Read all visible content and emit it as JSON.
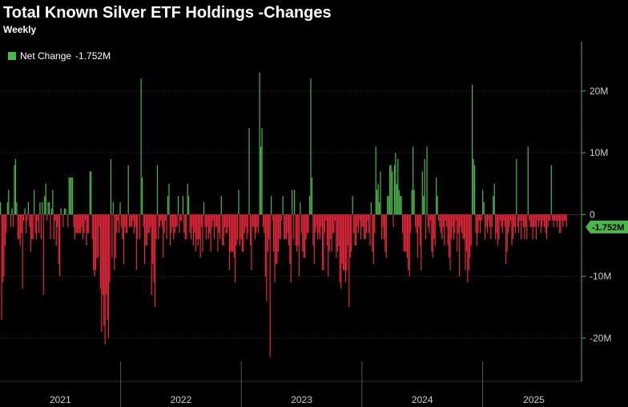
{
  "colors": {
    "positive": "#4cb84c",
    "negative": "#e8283c",
    "grid": "#333333",
    "axis": "#4cb84c",
    "label_bg": "#4cb84c"
  },
  "chart_data": {
    "type": "bar",
    "title": "Total Known Silver ETF Holdings -Changes",
    "subtitle": "Weekly",
    "legend": {
      "label": "Net Change",
      "value": "-1.752M"
    },
    "last_value_label": "-1.752M",
    "ylim": [
      -27,
      28
    ],
    "yticks": [
      {
        "value": 20,
        "label": "20M"
      },
      {
        "value": 10,
        "label": "10M"
      },
      {
        "value": 0,
        "label": "0"
      },
      {
        "value": -10,
        "label": "-10M"
      },
      {
        "value": -20,
        "label": "-20M"
      }
    ],
    "x_start": 2021.0,
    "x_end": 2025.82,
    "years": [
      "2021",
      "2022",
      "2023",
      "2024",
      "2025"
    ],
    "values": [
      2,
      -17,
      -11,
      -10,
      -5,
      -3,
      2,
      4,
      0,
      -2,
      1,
      -2,
      8,
      9,
      2,
      -4,
      -4,
      -5,
      -3,
      -12,
      -1,
      1,
      -3,
      -1,
      2,
      -2,
      -6,
      -4,
      -4,
      4,
      -3,
      -4,
      -1,
      -3,
      2,
      -4,
      2,
      -13,
      3,
      5,
      -1,
      2,
      2,
      -4,
      1,
      4,
      -4,
      -1,
      -5,
      -2,
      -8,
      -10,
      1,
      0,
      -2,
      1,
      1,
      0,
      -2,
      6,
      6,
      6,
      6,
      -2,
      -4,
      -3,
      -3,
      -3,
      -3,
      -3,
      -2,
      -4,
      -3,
      -1,
      -5,
      -3,
      -3,
      7,
      7,
      -4,
      -9,
      -10,
      -9,
      -7,
      -7,
      -2,
      -12,
      -19,
      -13,
      -18,
      -21,
      -13,
      -17,
      -20,
      -11,
      9,
      -7,
      2,
      -9,
      -7,
      -3,
      -1,
      -3,
      2,
      -2,
      -4,
      -8,
      -2,
      -3,
      -3,
      8,
      -2,
      -2,
      -2,
      -1,
      -3,
      -2,
      -9,
      -4,
      0,
      -4,
      22,
      6,
      -2,
      -8,
      -5,
      -5,
      -3,
      -3,
      -2,
      -13,
      -8,
      -11,
      -15,
      -4,
      8,
      -4,
      -2,
      -1,
      -2,
      -7,
      -3,
      -1,
      -4,
      3,
      5,
      -5,
      -3,
      -2,
      -4,
      -3,
      -2,
      -2,
      3,
      -3,
      -1,
      -1,
      3,
      -3,
      -4,
      -4,
      5,
      3,
      -3,
      -4,
      -2,
      -5,
      -3,
      -6,
      -4,
      -5,
      -4,
      -7,
      -2,
      -6,
      2,
      -2,
      -4,
      -2,
      -4,
      -3,
      -6,
      -2,
      -1,
      -4,
      -2,
      -2,
      -6,
      -3,
      -4,
      3,
      -5,
      -5,
      -2,
      -3,
      -3,
      -2,
      -9,
      -6,
      -6,
      -6,
      -7,
      -11,
      -5,
      -4,
      4,
      -5,
      -4,
      -6,
      -6,
      -3,
      -2,
      -4,
      -3,
      14,
      -5,
      -9,
      -2,
      -2,
      -4,
      -3,
      -2,
      -3,
      23,
      11,
      14,
      -2,
      -3,
      -10,
      -14,
      -6,
      -4,
      -23,
      3,
      -1,
      -6,
      -11,
      -8,
      -8,
      -6,
      -4,
      -4,
      -1,
      3,
      -4,
      -4,
      -4,
      -3,
      -5,
      -8,
      -11,
      4,
      -4,
      4,
      -5,
      -6,
      -5,
      -10,
      2,
      -3,
      -6,
      -7,
      -7,
      -4,
      -3,
      -3,
      3,
      22,
      6,
      -5,
      -8,
      -3,
      -2,
      -4,
      -3,
      -4,
      -2,
      -9,
      -9,
      -3,
      -1,
      -5,
      -10,
      -6,
      -4,
      -6,
      -3,
      -3,
      -1,
      -7,
      -6,
      -5,
      -11,
      -12,
      -8,
      -9,
      -9,
      -11,
      -9,
      -5,
      -15,
      -7,
      -6,
      3,
      -3,
      -5,
      -5,
      -2,
      -3,
      -1,
      -4,
      -2,
      -2,
      -4,
      -4,
      -3,
      -1,
      -3,
      -5,
      2,
      -6,
      -8,
      -3,
      11,
      4,
      5,
      2,
      7,
      -4,
      -2,
      -4,
      -6,
      -7,
      3,
      3,
      8,
      8,
      7,
      -2,
      8,
      10,
      5,
      9,
      4,
      3,
      3,
      -3,
      -6,
      -6,
      -6,
      -7,
      -9,
      -10,
      -3,
      4,
      11,
      4,
      -2,
      -3,
      -7,
      -2,
      -5,
      -9,
      7,
      3,
      9,
      -4,
      11,
      -2,
      -3,
      -1,
      -6,
      -7,
      -4,
      -5,
      6,
      3,
      -1,
      -2,
      -3,
      -4,
      -2,
      -5,
      -1,
      -2,
      -5,
      -7,
      -9,
      -4,
      -2,
      -4,
      -3,
      -1,
      -6,
      -3,
      -10,
      -2,
      -3,
      -4,
      -4,
      -9,
      -6,
      -11,
      -9,
      -7,
      -5,
      21,
      9,
      8,
      -3,
      -5,
      -3,
      -1,
      -3,
      -1,
      4,
      2,
      -4,
      -2,
      -3,
      -1,
      -2,
      -4,
      -2,
      3,
      5,
      -4,
      -3,
      -5,
      -4,
      -1,
      -2,
      -3,
      -1,
      -2,
      -8,
      -6,
      -3,
      -2,
      -1,
      -5,
      -4,
      -2,
      -3,
      9,
      -2,
      -3,
      -1,
      -4,
      -1,
      -2,
      -4,
      -2,
      -4,
      11,
      -1,
      -2,
      -2,
      -4,
      -2,
      -2,
      -4,
      -1,
      -2,
      -1,
      -3,
      -2,
      -1,
      -2,
      -3,
      -4,
      -2,
      -1,
      -1,
      8,
      -1,
      -2,
      -1,
      -1,
      -2,
      -1,
      -3,
      -3,
      -1,
      -2,
      -1,
      -1,
      -2
    ]
  }
}
